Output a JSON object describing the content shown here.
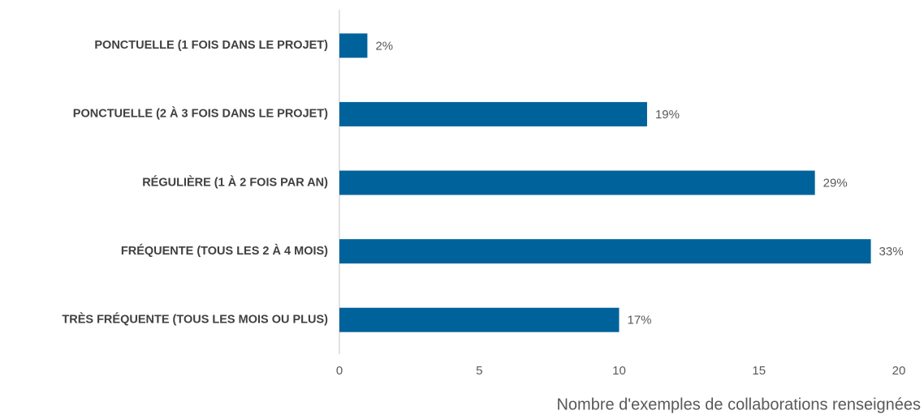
{
  "chart_data": {
    "type": "bar",
    "orientation": "horizontal",
    "x_label": "Nombre d'exemples de collaborations renseignées",
    "categories": [
      "PONCTUELLE (1 FOIS DANS LE PROJET)",
      "PONCTUELLE (2 À 3 FOIS DANS LE PROJET)",
      "RÉGULIÈRE (1 À 2 FOIS PAR AN)",
      "FRÉQUENTE (TOUS LES 2 À 4 MOIS)",
      "TRÈS FRÉQUENTE (TOUS LES MOIS OU PLUS)"
    ],
    "values": [
      1,
      11,
      17,
      19,
      10
    ],
    "value_labels": [
      "2%",
      "19%",
      "29%",
      "33%",
      "17%"
    ],
    "color": "#00629b",
    "xlim": [
      0,
      20
    ],
    "xticks": [
      0,
      5,
      10,
      15,
      20
    ],
    "grid": false
  }
}
